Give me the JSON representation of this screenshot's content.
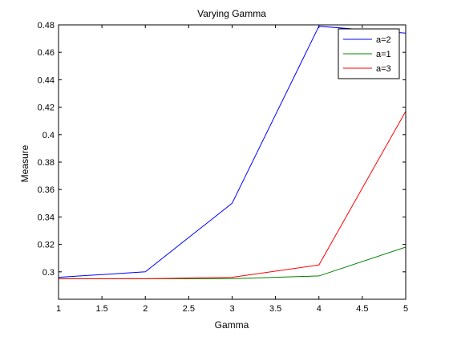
{
  "chart_data": {
    "type": "line",
    "title": "Varying Gamma",
    "xlabel": "Gamma",
    "ylabel": "Measure",
    "xlim": [
      1,
      5
    ],
    "ylim": [
      0.28,
      0.48
    ],
    "xticks": [
      "1",
      "1.5",
      "2",
      "2.5",
      "3",
      "3.5",
      "4",
      "4.5",
      "5"
    ],
    "yticks": [
      "0.3",
      "0.32",
      "0.34",
      "0.36",
      "0.38",
      "0.4",
      "0.42",
      "0.44",
      "0.46",
      "0.48"
    ],
    "grid": false,
    "legend_position": "top-right",
    "x": [
      1,
      2,
      3,
      4,
      5
    ],
    "series": [
      {
        "name": "a=2",
        "color": "#0000ff",
        "values": [
          0.296,
          0.3,
          0.35,
          0.479,
          0.474
        ]
      },
      {
        "name": "a=1",
        "color": "#008000",
        "values": [
          0.295,
          0.295,
          0.295,
          0.297,
          0.318
        ]
      },
      {
        "name": "a=3",
        "color": "#ff0000",
        "values": [
          0.295,
          0.295,
          0.296,
          0.305,
          0.417
        ]
      }
    ]
  }
}
